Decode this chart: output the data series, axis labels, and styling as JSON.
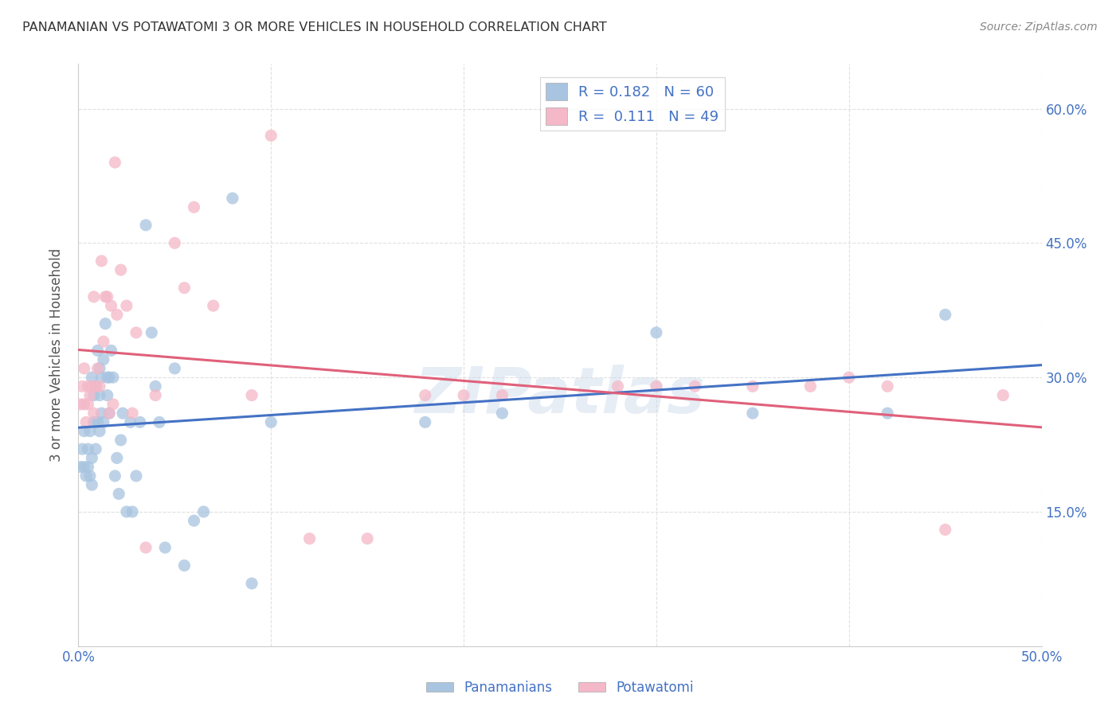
{
  "title": "PANAMANIAN VS POTAWATOMI 3 OR MORE VEHICLES IN HOUSEHOLD CORRELATION CHART",
  "source": "Source: ZipAtlas.com",
  "ylabel": "3 or more Vehicles in Household",
  "xlim": [
    0.0,
    0.5
  ],
  "ylim": [
    0.0,
    0.65
  ],
  "ytick_vals": [
    0.0,
    0.15,
    0.3,
    0.45,
    0.6
  ],
  "xtick_vals": [
    0.0,
    0.1,
    0.2,
    0.3,
    0.4,
    0.5
  ],
  "panamanian_color": "#a8c4e0",
  "potawatomi_color": "#f4b8c8",
  "panamanian_line_color": "#4472c4",
  "potawatomi_line_color": "#e0607a",
  "legend_r_pan": "0.182",
  "legend_n_pan": "60",
  "legend_r_pot": "0.111",
  "legend_n_pot": "49",
  "panamanian_x": [
    0.001,
    0.002,
    0.003,
    0.003,
    0.004,
    0.005,
    0.005,
    0.006,
    0.006,
    0.007,
    0.007,
    0.007,
    0.008,
    0.008,
    0.009,
    0.009,
    0.01,
    0.01,
    0.011,
    0.011,
    0.011,
    0.012,
    0.012,
    0.013,
    0.013,
    0.014,
    0.015,
    0.015,
    0.016,
    0.016,
    0.017,
    0.018,
    0.019,
    0.02,
    0.021,
    0.022,
    0.023,
    0.025,
    0.027,
    0.028,
    0.03,
    0.032,
    0.035,
    0.038,
    0.04,
    0.042,
    0.045,
    0.05,
    0.055,
    0.06,
    0.065,
    0.08,
    0.09,
    0.1,
    0.18,
    0.22,
    0.3,
    0.35,
    0.42,
    0.45
  ],
  "panamanian_y": [
    0.2,
    0.22,
    0.2,
    0.24,
    0.19,
    0.2,
    0.22,
    0.19,
    0.24,
    0.18,
    0.21,
    0.3,
    0.25,
    0.28,
    0.22,
    0.29,
    0.25,
    0.33,
    0.24,
    0.28,
    0.31,
    0.26,
    0.3,
    0.25,
    0.32,
    0.36,
    0.3,
    0.28,
    0.26,
    0.3,
    0.33,
    0.3,
    0.19,
    0.21,
    0.17,
    0.23,
    0.26,
    0.15,
    0.25,
    0.15,
    0.19,
    0.25,
    0.47,
    0.35,
    0.29,
    0.25,
    0.11,
    0.31,
    0.09,
    0.14,
    0.15,
    0.5,
    0.07,
    0.25,
    0.25,
    0.26,
    0.35,
    0.26,
    0.26,
    0.37
  ],
  "potawatomi_x": [
    0.001,
    0.002,
    0.003,
    0.003,
    0.004,
    0.005,
    0.005,
    0.006,
    0.007,
    0.008,
    0.008,
    0.009,
    0.01,
    0.011,
    0.012,
    0.013,
    0.014,
    0.015,
    0.016,
    0.017,
    0.018,
    0.019,
    0.02,
    0.022,
    0.025,
    0.028,
    0.03,
    0.035,
    0.04,
    0.05,
    0.055,
    0.06,
    0.07,
    0.09,
    0.1,
    0.12,
    0.15,
    0.18,
    0.2,
    0.22,
    0.28,
    0.3,
    0.32,
    0.35,
    0.38,
    0.4,
    0.42,
    0.45,
    0.48
  ],
  "potawatomi_y": [
    0.27,
    0.29,
    0.27,
    0.31,
    0.25,
    0.27,
    0.29,
    0.28,
    0.29,
    0.26,
    0.39,
    0.29,
    0.31,
    0.29,
    0.43,
    0.34,
    0.39,
    0.39,
    0.26,
    0.38,
    0.27,
    0.54,
    0.37,
    0.42,
    0.38,
    0.26,
    0.35,
    0.11,
    0.28,
    0.45,
    0.4,
    0.49,
    0.38,
    0.28,
    0.57,
    0.12,
    0.12,
    0.28,
    0.28,
    0.28,
    0.29,
    0.29,
    0.29,
    0.29,
    0.29,
    0.3,
    0.29,
    0.13,
    0.28
  ],
  "watermark": "ZIPatlas",
  "background_color": "#ffffff",
  "grid_color": "#e0e0e0",
  "title_color": "#333333",
  "axis_label_color": "#4472c4"
}
